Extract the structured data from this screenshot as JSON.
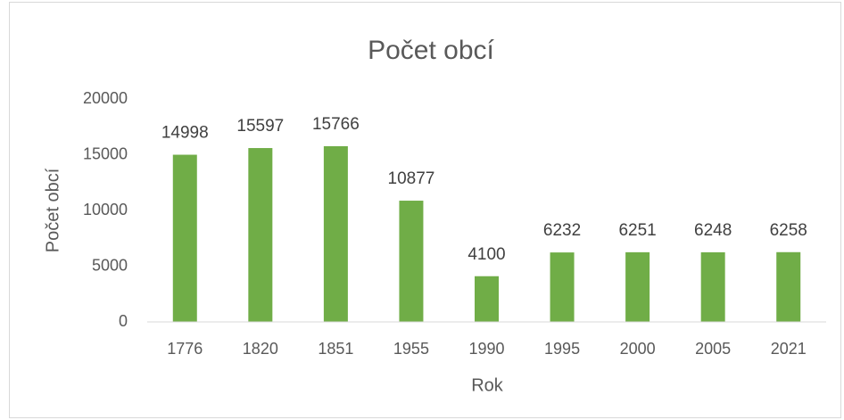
{
  "chart_data": {
    "type": "bar",
    "title": "Počet obcí",
    "x_label": "Rok",
    "y_label": "Počet obcí",
    "categories": [
      "1776",
      "1820",
      "1851",
      "1955",
      "1990",
      "1995",
      "2000",
      "2005",
      "2021"
    ],
    "values": [
      14998,
      15597,
      15766,
      10877,
      4100,
      6232,
      6251,
      6248,
      6258
    ],
    "color": "#70ad47",
    "ylim": [
      0,
      20000
    ],
    "yticks": [
      0,
      5000,
      10000,
      15000,
      20000
    ],
    "grid": false,
    "data_labels": true
  }
}
